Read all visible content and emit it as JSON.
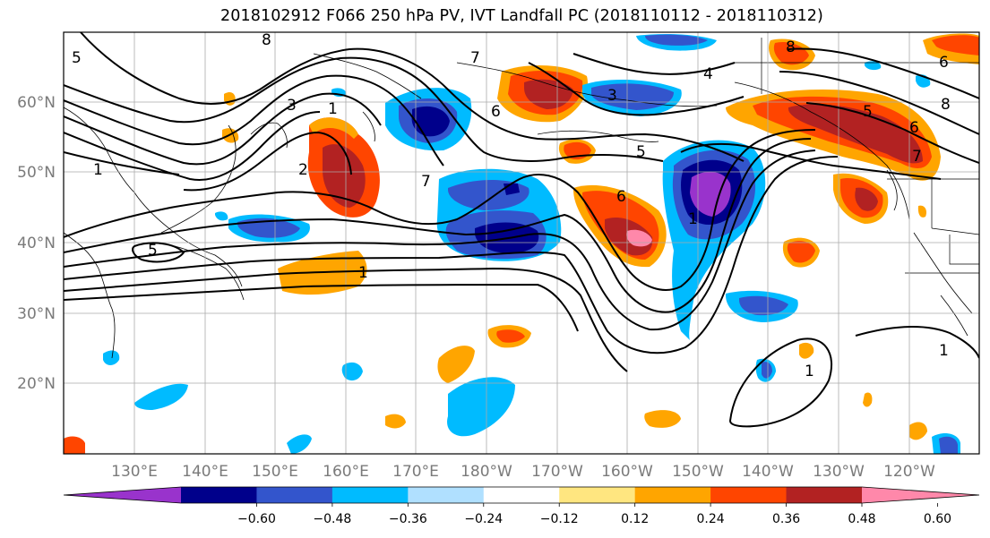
{
  "title": "2018102912 F066 250 hPa PV, IVT Landfall PC (2018110112 - 2018110312)",
  "map": {
    "lat_labels": [
      "60°N",
      "50°N",
      "40°N",
      "30°N",
      "20°N"
    ],
    "lon_labels": [
      "130°E",
      "140°E",
      "150°E",
      "160°E",
      "170°E",
      "180°W",
      "170°W",
      "160°W",
      "150°W",
      "140°W",
      "130°W",
      "120°W"
    ],
    "pv_contour_labels": [
      "8",
      "5",
      "7",
      "3",
      "1",
      "6",
      "3",
      "4",
      "8",
      "6",
      "8",
      "6",
      "7",
      "5",
      "1",
      "2",
      "5",
      "7",
      "6",
      "1",
      "5",
      "1",
      "1",
      "1"
    ]
  },
  "colorbar": {
    "colors": [
      "#9933cc",
      "#00008b",
      "#3355cc",
      "#00bbff",
      "#b0e0ff",
      "#ffffff",
      "#ffe680",
      "#ffa500",
      "#ff4500",
      "#b22222",
      "#ff88aa"
    ],
    "tick_labels": [
      "−0.60",
      "−0.48",
      "−0.36",
      "−0.24",
      "−0.12",
      "0.12",
      "0.24",
      "0.36",
      "0.48",
      "0.60"
    ]
  }
}
